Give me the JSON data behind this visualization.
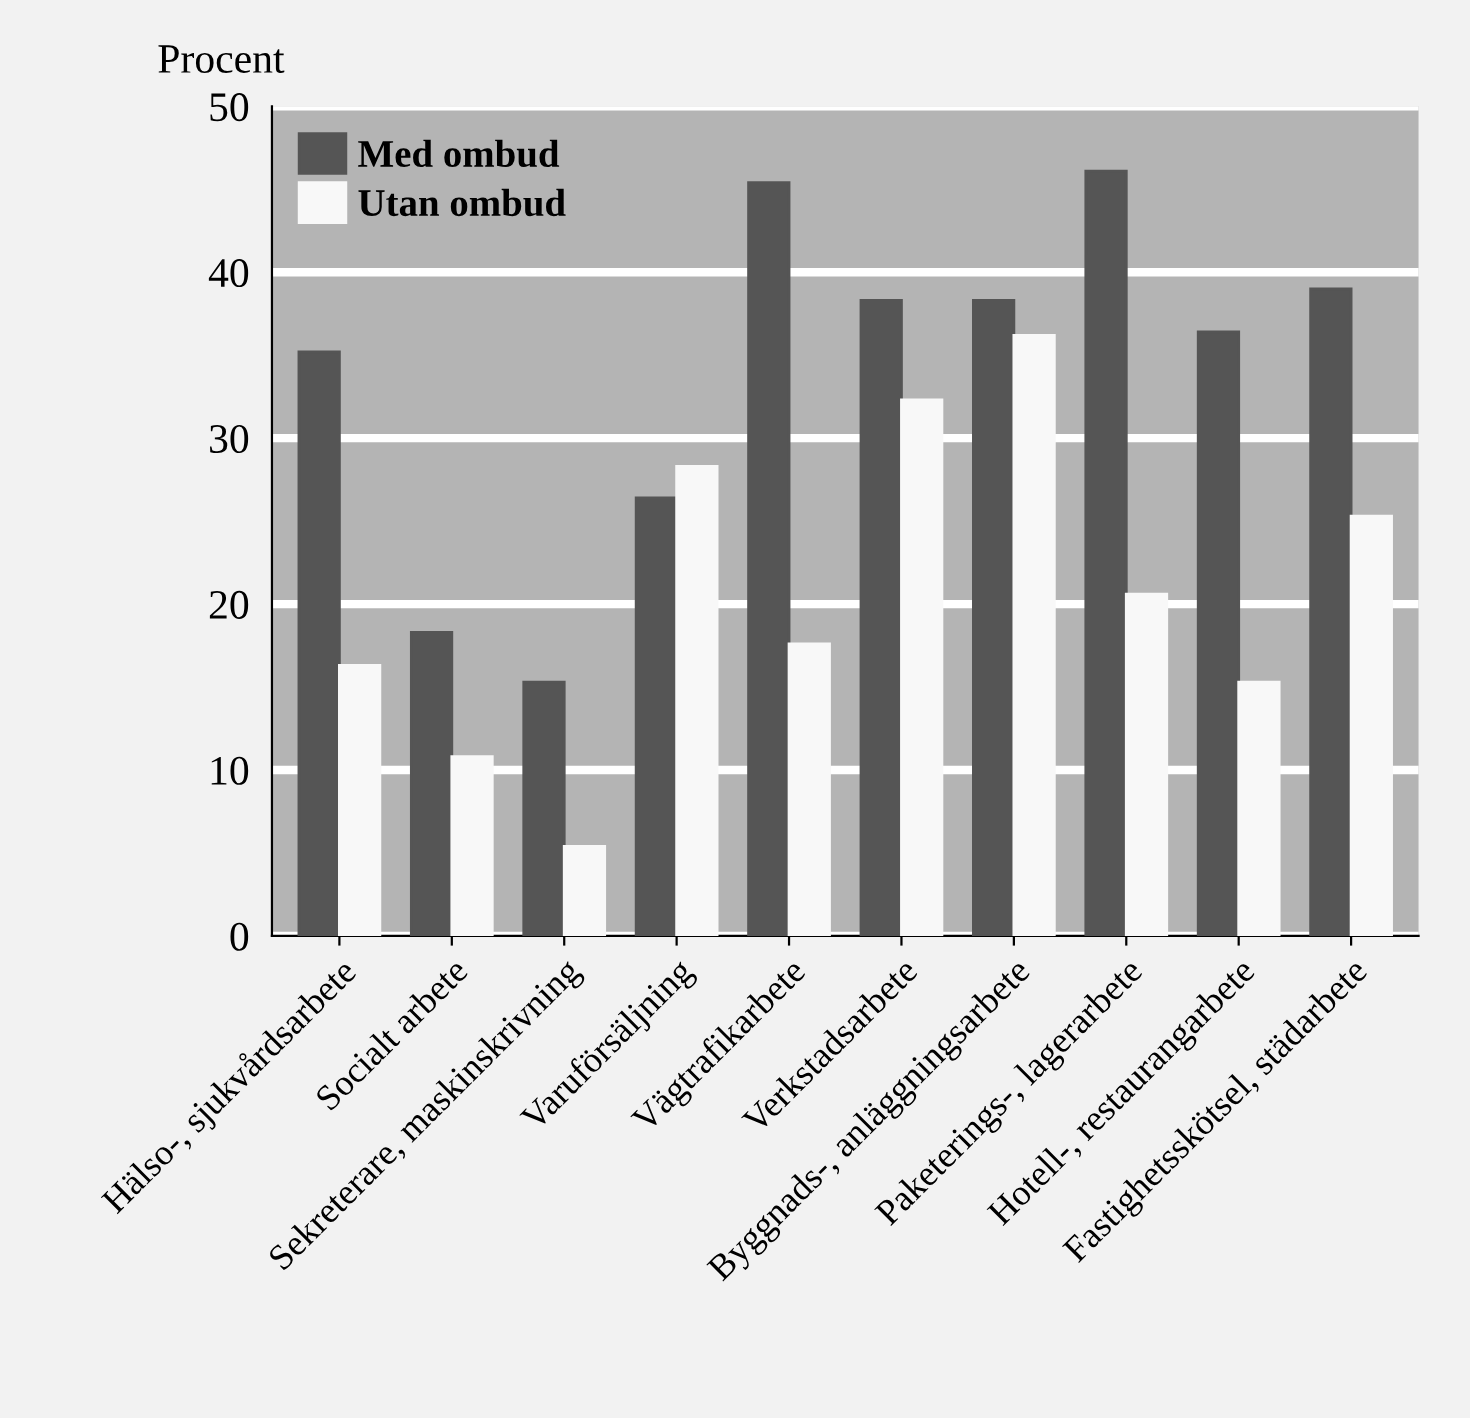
{
  "chart_data": {
    "type": "bar",
    "ylabel": "Procent",
    "categories": [
      "Hälso-, sjukvårdsarbete",
      "Socialt arbete",
      "Sekreterare, maskinskrivning",
      "Varuförsäljning",
      "Vägtrafikarbete",
      "Verkstadsarbete",
      "Byggnads-, anläggningsarbete",
      "Paketerings-, lagerarbete",
      "Hotell-, restaurangarbete",
      "Fastighetsskötsel, städarbete"
    ],
    "series": [
      {
        "name": "Med ombud",
        "color": "#555555",
        "values": [
          35.2,
          18.3,
          15.3,
          26.4,
          45.4,
          38.3,
          38.3,
          46.1,
          36.4,
          39.0
        ]
      },
      {
        "name": "Utan ombud",
        "color": "#f8f8f8",
        "values": [
          16.3,
          10.8,
          5.4,
          28.3,
          17.6,
          32.3,
          36.2,
          20.6,
          15.3,
          25.3
        ]
      }
    ],
    "ylim": [
      0,
      50
    ],
    "yticks": [
      0,
      10,
      20,
      30,
      40,
      50
    ],
    "grid": "y",
    "legend": "top left"
  }
}
